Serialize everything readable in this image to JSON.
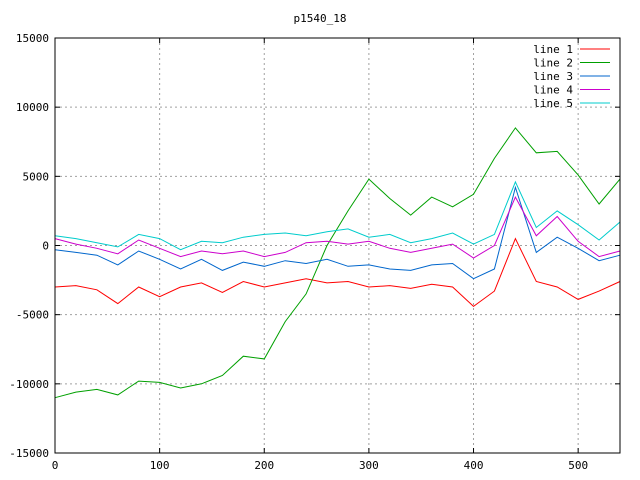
{
  "chart_data": {
    "type": "line",
    "title": "p1540_18",
    "xlabel": "",
    "ylabel": "",
    "xlim": [
      0,
      540
    ],
    "ylim": [
      -15000,
      15000
    ],
    "xticks": [
      "0",
      "100",
      "200",
      "300",
      "400",
      "500"
    ],
    "yticks": [
      "-15000",
      "-10000",
      "-5000",
      "0",
      "5000",
      "10000",
      "15000"
    ],
    "grid": true,
    "legend_position": "top-right",
    "series": [
      {
        "name": "line 1",
        "color": "#ff0000",
        "x": [
          0,
          20,
          40,
          60,
          80,
          100,
          120,
          140,
          160,
          180,
          200,
          220,
          240,
          260,
          280,
          300,
          320,
          340,
          360,
          380,
          400,
          420,
          440,
          460,
          480,
          500,
          520,
          540
        ],
        "y": [
          -3000,
          -2900,
          -3200,
          -4200,
          -3000,
          -3700,
          -3000,
          -2700,
          -3400,
          -2600,
          -3000,
          -2700,
          -2400,
          -2700,
          -2600,
          -3000,
          -2900,
          -3100,
          -2800,
          -3000,
          -4400,
          -3300,
          500,
          -2600,
          -3000,
          -3900,
          -3300,
          -2600
        ]
      },
      {
        "name": "line 2",
        "color": "#00a000",
        "x": [
          0,
          20,
          40,
          60,
          80,
          100,
          120,
          140,
          160,
          180,
          200,
          220,
          240,
          260,
          280,
          300,
          320,
          340,
          360,
          380,
          400,
          420,
          440,
          460,
          480,
          500,
          520,
          540
        ],
        "y": [
          -11000,
          -10600,
          -10400,
          -10800,
          -9800,
          -9900,
          -10300,
          -10000,
          -9400,
          -8000,
          -8200,
          -5500,
          -3500,
          0,
          2500,
          4800,
          3400,
          2200,
          3500,
          2800,
          3700,
          6300,
          8500,
          6700,
          6800,
          5100,
          3000,
          4800
        ]
      },
      {
        "name": "line 3",
        "color": "#0066cc",
        "x": [
          0,
          20,
          40,
          60,
          80,
          100,
          120,
          140,
          160,
          180,
          200,
          220,
          240,
          260,
          280,
          300,
          320,
          340,
          360,
          380,
          400,
          420,
          440,
          460,
          480,
          500,
          520,
          540
        ],
        "y": [
          -300,
          -500,
          -700,
          -1400,
          -400,
          -1000,
          -1700,
          -1000,
          -1800,
          -1200,
          -1500,
          -1100,
          -1300,
          -1000,
          -1500,
          -1400,
          -1700,
          -1800,
          -1400,
          -1300,
          -2400,
          -1700,
          4200,
          -500,
          600,
          -200,
          -1100,
          -700
        ]
      },
      {
        "name": "line 4",
        "color": "#cc00cc",
        "x": [
          0,
          20,
          40,
          60,
          80,
          100,
          120,
          140,
          160,
          180,
          200,
          220,
          240,
          260,
          280,
          300,
          320,
          340,
          360,
          380,
          400,
          420,
          440,
          460,
          480,
          500,
          520,
          540
        ],
        "y": [
          500,
          100,
          -200,
          -600,
          400,
          -200,
          -800,
          -400,
          -600,
          -400,
          -800,
          -500,
          200,
          300,
          100,
          300,
          -200,
          -500,
          -200,
          100,
          -900,
          0,
          3500,
          700,
          2100,
          300,
          -800,
          -400
        ]
      },
      {
        "name": "line 5",
        "color": "#00cccc",
        "x": [
          0,
          20,
          40,
          60,
          80,
          100,
          120,
          140,
          160,
          180,
          200,
          220,
          240,
          260,
          280,
          300,
          320,
          340,
          360,
          380,
          400,
          420,
          440,
          460,
          480,
          500,
          520,
          540
        ],
        "y": [
          700,
          500,
          200,
          -100,
          800,
          500,
          -300,
          300,
          200,
          600,
          800,
          900,
          700,
          1000,
          1200,
          600,
          800,
          200,
          500,
          900,
          100,
          800,
          4600,
          1300,
          2500,
          1500,
          400,
          1700
        ]
      }
    ]
  }
}
